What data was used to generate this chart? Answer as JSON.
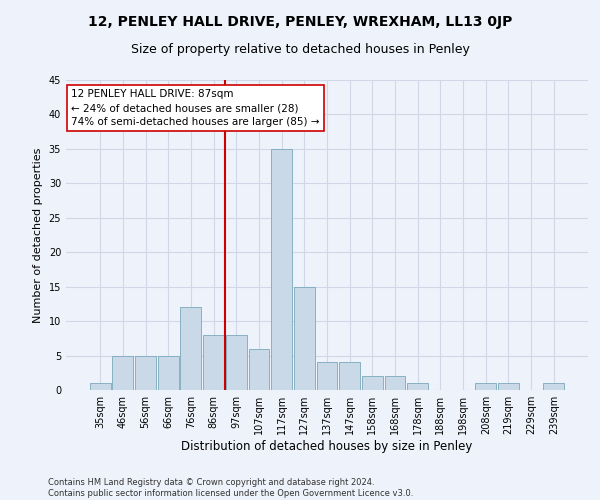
{
  "title1": "12, PENLEY HALL DRIVE, PENLEY, WREXHAM, LL13 0JP",
  "title2": "Size of property relative to detached houses in Penley",
  "xlabel": "Distribution of detached houses by size in Penley",
  "ylabel": "Number of detached properties",
  "bins": [
    "35sqm",
    "46sqm",
    "56sqm",
    "66sqm",
    "76sqm",
    "86sqm",
    "97sqm",
    "107sqm",
    "117sqm",
    "127sqm",
    "137sqm",
    "147sqm",
    "158sqm",
    "168sqm",
    "178sqm",
    "188sqm",
    "198sqm",
    "208sqm",
    "219sqm",
    "229sqm",
    "239sqm"
  ],
  "values": [
    1,
    5,
    5,
    5,
    12,
    8,
    8,
    6,
    35,
    15,
    4,
    4,
    2,
    2,
    1,
    0,
    0,
    1,
    1,
    0,
    1
  ],
  "bar_color": "#c9d9e8",
  "bar_edgecolor": "#7aaabb",
  "vline_x": 5.5,
  "vline_color": "#cc0000",
  "annotation_line1": "12 PENLEY HALL DRIVE: 87sqm",
  "annotation_line2": "← 24% of detached houses are smaller (28)",
  "annotation_line3": "74% of semi-detached houses are larger (85) →",
  "annotation_box_color": "#ffffff",
  "annotation_box_edgecolor": "#cc0000",
  "ylim": [
    0,
    45
  ],
  "yticks": [
    0,
    5,
    10,
    15,
    20,
    25,
    30,
    35,
    40,
    45
  ],
  "grid_color": "#d0d8e8",
  "background_color": "#eef2fa",
  "footer": "Contains HM Land Registry data © Crown copyright and database right 2024.\nContains public sector information licensed under the Open Government Licence v3.0.",
  "title1_fontsize": 10,
  "title2_fontsize": 9,
  "xlabel_fontsize": 8.5,
  "ylabel_fontsize": 8,
  "tick_fontsize": 7,
  "annotation_fontsize": 7.5,
  "footer_fontsize": 6
}
